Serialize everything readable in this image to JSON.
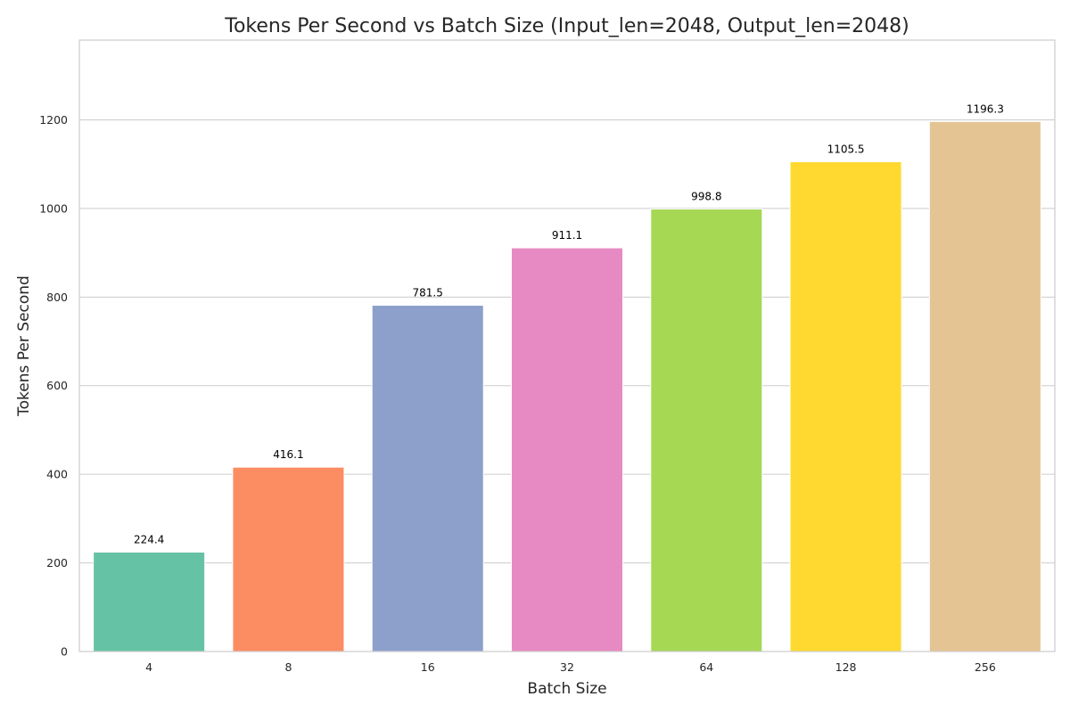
{
  "chart_data": {
    "type": "bar",
    "title": "Tokens Per Second vs Batch Size (Input_len=2048, Output_len=2048)",
    "xlabel": "Batch Size",
    "ylabel": "Tokens Per Second",
    "categories": [
      "4",
      "8",
      "16",
      "32",
      "64",
      "128",
      "256"
    ],
    "values": [
      224.4,
      416.1,
      781.5,
      911.1,
      998.8,
      1105.5,
      1196.3
    ],
    "data_labels": [
      "224.4",
      "416.1",
      "781.5",
      "911.1",
      "998.8",
      "1105.5",
      "1196.3"
    ],
    "colors": [
      "#66c2a5",
      "#fc8d62",
      "#8da0cb",
      "#e78ac3",
      "#a6d854",
      "#ffd92f",
      "#e5c494"
    ],
    "ylim": [
      0,
      1380
    ],
    "yticks": [
      0,
      200,
      400,
      600,
      800,
      1000,
      1200
    ],
    "ytick_labels": [
      "0",
      "200",
      "400",
      "600",
      "800",
      "1000",
      "1200"
    ],
    "grid": "horizontal",
    "legend": "none"
  }
}
